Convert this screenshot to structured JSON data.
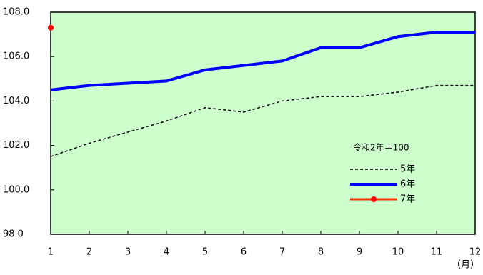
{
  "chart_data": {
    "type": "line",
    "x_label": "（月）",
    "note": "令和2年＝100",
    "x": [
      1,
      2,
      3,
      4,
      5,
      6,
      7,
      8,
      9,
      10,
      11,
      12
    ],
    "xlim": [
      1,
      12
    ],
    "xticks": [
      1,
      2,
      3,
      4,
      5,
      6,
      7,
      8,
      9,
      10,
      11,
      12
    ],
    "ylim": [
      98,
      108
    ],
    "yticks": [
      {
        "value": 98,
        "label": "98.0"
      },
      {
        "value": 100,
        "label": "100.0"
      },
      {
        "value": 102,
        "label": "102.0"
      },
      {
        "value": 104,
        "label": "104.0"
      },
      {
        "value": 106,
        "label": "106.0"
      },
      {
        "value": 108,
        "label": "108.0"
      }
    ],
    "background": "#ccffcc",
    "series": [
      {
        "name": "5年",
        "color": "#000000",
        "line_style": "dashed",
        "values": [
          101.5,
          102.1,
          102.6,
          103.1,
          103.7,
          103.5,
          104.0,
          104.2,
          104.2,
          104.4,
          104.7,
          104.7
        ]
      },
      {
        "name": "6年",
        "color": "#0000ff",
        "line_style": "thick",
        "values": [
          104.5,
          104.7,
          104.8,
          104.9,
          105.4,
          105.6,
          105.8,
          106.4,
          106.4,
          106.9,
          107.1,
          107.1
        ]
      },
      {
        "name": "7年",
        "color": "#ff3300",
        "line_style": "marker",
        "marker_color": "#ff0000",
        "values": [
          107.3,
          null,
          null,
          null,
          null,
          null,
          null,
          null,
          null,
          null,
          null,
          null
        ]
      }
    ]
  }
}
